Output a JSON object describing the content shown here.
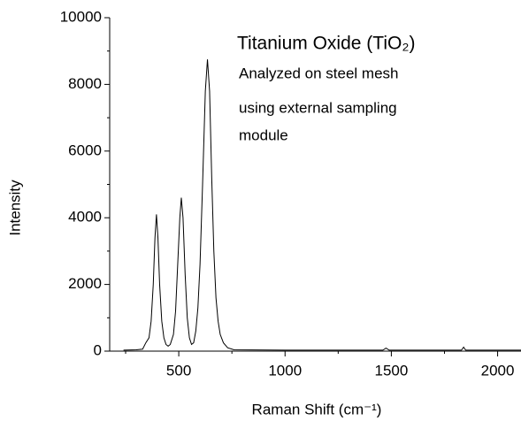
{
  "chart_data": {
    "type": "line",
    "title": "Titanium Oxide (TiO₂)",
    "annotation": [
      "Analyzed on steel mesh",
      "using external sampling",
      "module"
    ],
    "xlabel": "Raman Shift (cm⁻¹)",
    "ylabel": "Intensity",
    "color": "#000000",
    "x": [
      240,
      300,
      330,
      345,
      360,
      370,
      380,
      388,
      395,
      402,
      410,
      420,
      430,
      440,
      450,
      460,
      475,
      485,
      495,
      505,
      512,
      520,
      530,
      540,
      550,
      560,
      570,
      580,
      590,
      600,
      612,
      625,
      635,
      645,
      655,
      665,
      675,
      685,
      695,
      710,
      730,
      760,
      1000,
      1460,
      1475,
      1490,
      1830,
      1840,
      1850,
      2110
    ],
    "values": [
      30,
      40,
      60,
      250,
      400,
      900,
      2000,
      3400,
      4100,
      3400,
      2000,
      900,
      400,
      200,
      150,
      200,
      500,
      1200,
      2600,
      4000,
      4600,
      4000,
      2300,
      1000,
      400,
      200,
      250,
      600,
      1300,
      2600,
      5000,
      7800,
      8750,
      7800,
      5200,
      3000,
      1600,
      900,
      500,
      250,
      100,
      40,
      30,
      30,
      90,
      30,
      30,
      120,
      30,
      30
    ],
    "xlim": [
      175,
      2110
    ],
    "ylim": [
      0,
      10000
    ],
    "xticks": [
      500,
      1000,
      1500,
      2000
    ],
    "yticks": [
      0,
      2000,
      4000,
      6000,
      8000,
      10000
    ],
    "xticks_minor": [
      250,
      750,
      1250,
      1750
    ],
    "yticks_minor": [
      1000,
      3000,
      5000,
      7000,
      9000
    ]
  }
}
